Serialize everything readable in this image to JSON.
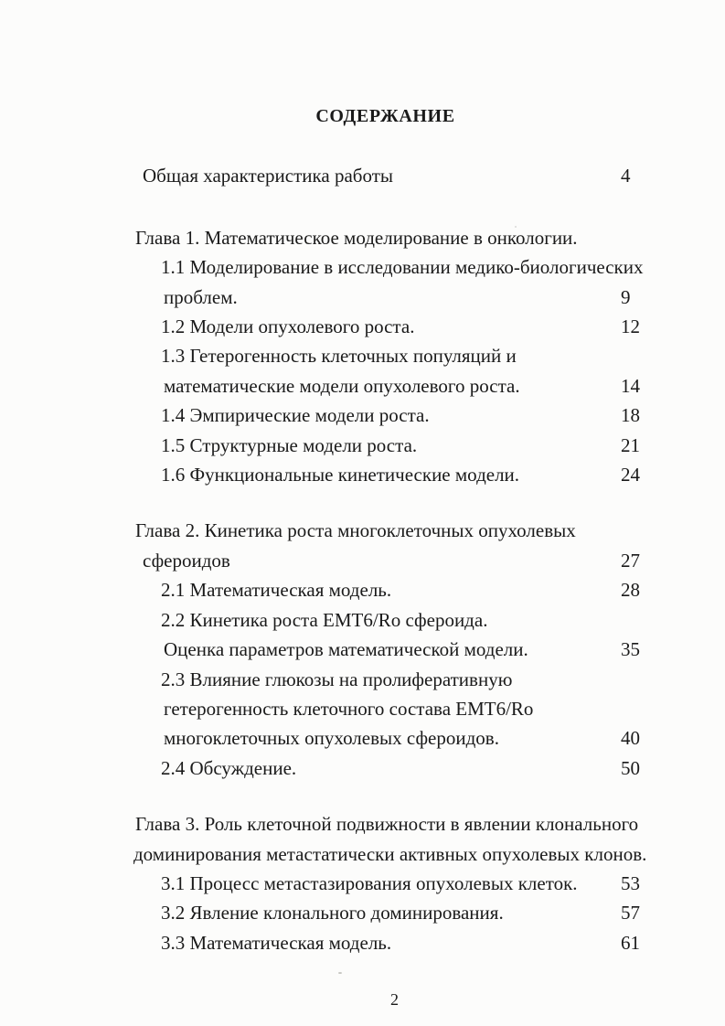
{
  "doc": {
    "title": "СОДЕРЖАНИЕ",
    "footer_page_number": "2",
    "text_color": "#1a1a1a",
    "background_color": "#fcfcfb"
  },
  "toc": {
    "lines": [
      {
        "text": "Общая характеристика работы",
        "page": "4",
        "level": "entry",
        "chapter_start": false
      },
      {
        "text": "Глава 1. Математическое моделирование в онкологии.",
        "page": "",
        "level": "chapter",
        "chapter_start": true
      },
      {
        "text": "1.1 Моделирование в исследовании медико-биологических",
        "page": "",
        "level": "item",
        "chapter_start": false
      },
      {
        "text": "проблем.",
        "page": "9",
        "level": "item-cont",
        "chapter_start": false
      },
      {
        "text": "1.2 Модели опухолевого роста.",
        "page": "12",
        "level": "item",
        "chapter_start": false
      },
      {
        "text": "1.3 Гетерогенность клеточных популяций и",
        "page": "",
        "level": "item",
        "chapter_start": false
      },
      {
        "text": "математические модели опухолевого роста.",
        "page": "14",
        "level": "item-cont",
        "chapter_start": false
      },
      {
        "text": "1.4 Эмпирические модели роста.",
        "page": "18",
        "level": "item",
        "chapter_start": false
      },
      {
        "text": "1.5 Структурные модели роста.",
        "page": "21",
        "level": "item",
        "chapter_start": false
      },
      {
        "text": "1.6 Функциональные кинетические модели.",
        "page": "24",
        "level": "item",
        "chapter_start": false
      },
      {
        "text": "Глава 2. Кинетика роста многоклеточных опухолевых",
        "page": "",
        "level": "chapter",
        "chapter_start": true
      },
      {
        "text": "сфероидов",
        "page": "27",
        "level": "entry",
        "chapter_start": false
      },
      {
        "text": "2.1 Математическая модель.",
        "page": "28",
        "level": "item",
        "chapter_start": false
      },
      {
        "text": "2.2 Кинетика роста EMT6/Ro сфероида.",
        "page": "",
        "level": "item",
        "chapter_start": false
      },
      {
        "text": "Оценка параметров математической модели.",
        "page": "35",
        "level": "item-cont",
        "chapter_start": false
      },
      {
        "text": "2.3 Влияние глюкозы на пролиферативную",
        "page": "",
        "level": "item",
        "chapter_start": false
      },
      {
        "text": "гетерогенность клеточного состава EMT6/Ro",
        "page": "",
        "level": "item-cont",
        "chapter_start": false
      },
      {
        "text": "многоклеточных опухолевых сфероидов.",
        "page": "40",
        "level": "item-cont",
        "chapter_start": false
      },
      {
        "text": "2.4 Обсуждение.",
        "page": "50",
        "level": "item",
        "chapter_start": false
      },
      {
        "text": "Глава 3. Роль клеточной подвижности в явлении клонального",
        "page": "",
        "level": "chapter",
        "chapter_start": true
      },
      {
        "text": "доминирования метастатически активных опухолевых клонов.",
        "page": "",
        "level": "chapter-cont",
        "chapter_start": false
      },
      {
        "text": "3.1 Процесс метастазирования опухолевых клеток.",
        "page": "53",
        "level": "item",
        "chapter_start": false
      },
      {
        "text": "3.2 Явление клонального доминирования.",
        "page": "57",
        "level": "item",
        "chapter_start": false
      },
      {
        "text": "3.3 Математическая модель.",
        "page": "61",
        "level": "item",
        "chapter_start": false
      }
    ]
  }
}
